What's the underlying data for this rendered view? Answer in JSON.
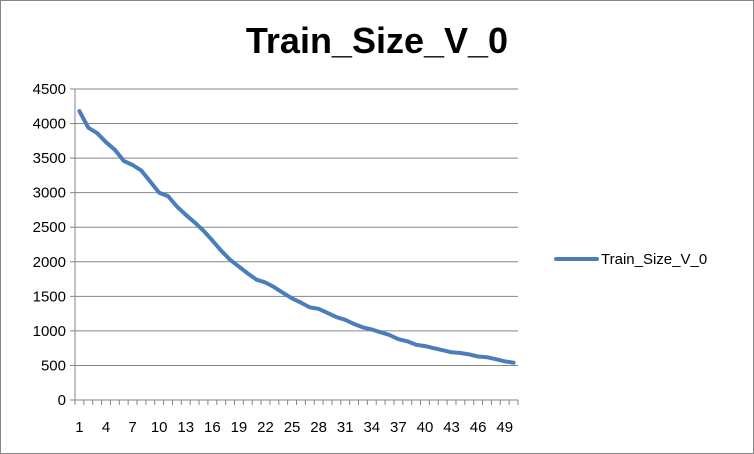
{
  "chart_data": {
    "type": "line",
    "title": "Train_Size_V_0",
    "xlabel": "",
    "ylabel": "",
    "ylim": [
      0,
      4500
    ],
    "y_ticks": [
      0,
      500,
      1000,
      1500,
      2000,
      2500,
      3000,
      3500,
      4000,
      4500
    ],
    "x": [
      1,
      2,
      3,
      4,
      5,
      6,
      7,
      8,
      9,
      10,
      11,
      12,
      13,
      14,
      15,
      16,
      17,
      18,
      19,
      20,
      21,
      22,
      23,
      24,
      25,
      26,
      27,
      28,
      29,
      30,
      31,
      32,
      33,
      34,
      35,
      36,
      37,
      38,
      39,
      40,
      41,
      42,
      43,
      44,
      45,
      46,
      47,
      48,
      49,
      50
    ],
    "x_tick_labels": [
      "1",
      "4",
      "7",
      "10",
      "13",
      "16",
      "19",
      "22",
      "25",
      "28",
      "31",
      "34",
      "37",
      "40",
      "43",
      "46",
      "49"
    ],
    "grid": "horizontal",
    "legend_position": "right",
    "series": [
      {
        "name": "Train_Size_V_0",
        "color": "#4A7EBB",
        "values": [
          4180,
          3940,
          3860,
          3730,
          3620,
          3460,
          3400,
          3320,
          3160,
          3000,
          2950,
          2800,
          2680,
          2570,
          2450,
          2310,
          2160,
          2030,
          1930,
          1830,
          1740,
          1700,
          1630,
          1550,
          1470,
          1410,
          1340,
          1320,
          1260,
          1200,
          1160,
          1100,
          1050,
          1020,
          980,
          940,
          880,
          850,
          800,
          780,
          750,
          720,
          690,
          680,
          660,
          630,
          620,
          590,
          560,
          540
        ]
      }
    ]
  }
}
